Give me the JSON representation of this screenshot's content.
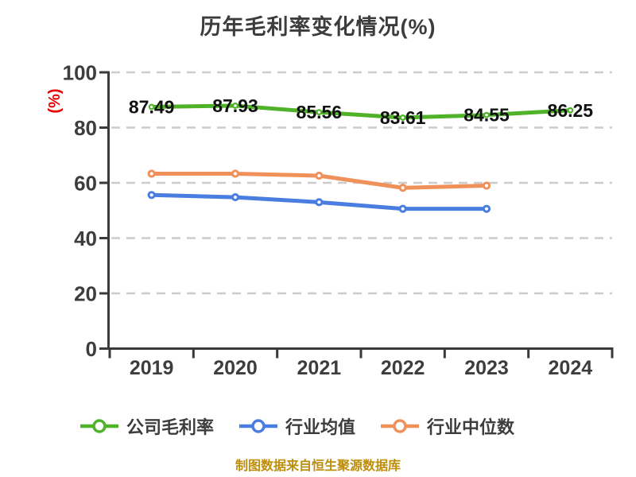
{
  "page": {
    "background": "#ffffff"
  },
  "chart_data": {
    "type": "line",
    "title": "历年毛利率变化情况(%)",
    "ylabel": "(%)",
    "footer": "制图数据来自恒生聚源数据库",
    "categories": [
      "2019",
      "2020",
      "2021",
      "2022",
      "2023",
      "2024"
    ],
    "ylim": [
      0,
      100
    ],
    "yticks": [
      0,
      20,
      40,
      60,
      80,
      100
    ],
    "grid": "horizontal-dashed",
    "legend_position": "bottom",
    "series": [
      {
        "name": "公司毛利率",
        "color": "#4fb229",
        "show_labels": true,
        "values": [
          87.49,
          87.93,
          85.56,
          83.61,
          84.55,
          86.25
        ]
      },
      {
        "name": "行业均值",
        "color": "#4a7de0",
        "show_labels": false,
        "values": [
          55.6,
          54.8,
          53.0,
          50.6,
          50.6
        ]
      },
      {
        "name": "行业中位数",
        "color": "#f0915c",
        "show_labels": false,
        "values": [
          63.3,
          63.3,
          62.6,
          58.2,
          59.0
        ]
      }
    ]
  },
  "colors": {
    "title": "#3c3c3c",
    "axis": "#3a3a3a",
    "tick_label": "#3d3d3d",
    "grid": "#cccccc",
    "data_label": "#111111",
    "ylabel": "#e60000",
    "footer": "#bd8e0b",
    "marker_fill": "#ffffff"
  }
}
